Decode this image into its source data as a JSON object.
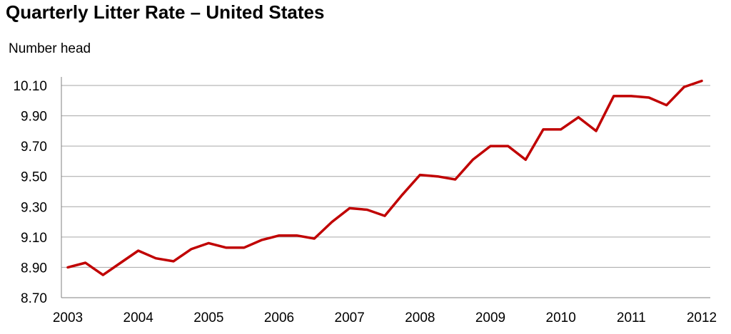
{
  "chart_data": {
    "type": "line",
    "title": "Quarterly Litter Rate – United States",
    "ylabel": "Number head",
    "xlabel": "",
    "ylim": [
      8.7,
      10.1
    ],
    "yticks": [
      "8.70",
      "8.90",
      "9.10",
      "9.30",
      "9.50",
      "9.70",
      "9.90",
      "10.10"
    ],
    "xticks": [
      "2003",
      "2004",
      "2005",
      "2006",
      "2007",
      "2008",
      "2009",
      "2010",
      "2011",
      "2012"
    ],
    "grid": true,
    "legend": "none",
    "line_color": "#c00000",
    "series": [
      {
        "x": [
          "2003 Q1",
          "2003 Q2",
          "2003 Q3",
          "2003 Q4",
          "2004 Q1",
          "2004 Q2",
          "2004 Q3",
          "2004 Q4",
          "2005 Q1",
          "2005 Q2",
          "2005 Q3",
          "2005 Q4",
          "2006 Q1",
          "2006 Q2",
          "2006 Q3",
          "2006 Q4",
          "2007 Q1",
          "2007 Q2",
          "2007 Q3",
          "2007 Q4",
          "2008 Q1",
          "2008 Q2",
          "2008 Q3",
          "2008 Q4",
          "2009 Q1",
          "2009 Q2",
          "2009 Q3",
          "2009 Q4",
          "2010 Q1",
          "2010 Q2",
          "2010 Q3",
          "2010 Q4",
          "2011 Q1",
          "2011 Q2",
          "2011 Q3",
          "2011 Q4",
          "2012 Q1"
        ],
        "values": [
          8.9,
          8.93,
          8.85,
          8.93,
          9.01,
          8.96,
          8.94,
          9.02,
          9.06,
          9.03,
          9.03,
          9.08,
          9.11,
          9.11,
          9.09,
          9.2,
          9.29,
          9.28,
          9.24,
          9.38,
          9.51,
          9.5,
          9.48,
          9.61,
          9.7,
          9.7,
          9.61,
          9.81,
          9.81,
          9.89,
          9.8,
          10.03,
          10.03,
          10.02,
          9.97,
          10.09,
          10.13
        ]
      }
    ]
  }
}
